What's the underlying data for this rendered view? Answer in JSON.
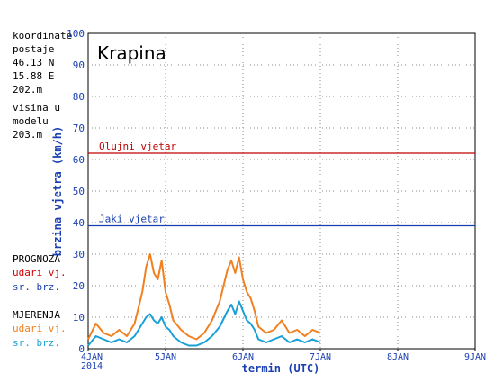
{
  "info": {
    "coords_label": [
      "koordinate",
      "postaje"
    ],
    "lat": "46.13 N",
    "lon": "15.88 E",
    "station_alt": "202.m",
    "model_label": [
      "visina u",
      "modelu"
    ],
    "model_alt": "203.m"
  },
  "legend": {
    "forecast_title": "PROGNOZA",
    "gust": "udari vj.",
    "mean": "sr. brz.",
    "measured_title": "MJERENJA",
    "measured_gust": "udari vj.",
    "measured_mean": "sr. brz."
  },
  "colors": {
    "gust_forecast": "#d00000",
    "mean_forecast": "#1a3fb0",
    "gust_measured": "#f08020",
    "mean_measured": "#1aa0d8",
    "storm_line": "#c00000",
    "strong_line": "#1a3fb0",
    "axis_label": "#1a3fb0"
  },
  "chart_data": {
    "type": "line",
    "title": "Krapina",
    "xlabel": "termin (UTC)",
    "ylabel": "brzina vjetra (km/h)",
    "ylim": [
      0,
      100
    ],
    "yticks": [
      0,
      10,
      20,
      30,
      40,
      50,
      60,
      70,
      80,
      90,
      100
    ],
    "x_range": [
      "4JAN 2014 00",
      "9JAN 2014 00"
    ],
    "xticks": [
      "4JAN",
      "5JAN",
      "6JAN",
      "7JAN",
      "8JAN",
      "9JAN"
    ],
    "xtick_year": "2014",
    "grid": true,
    "thresholds": [
      {
        "label": "Olujni vjetar",
        "value": 62
      },
      {
        "label": "Jaki vjetar",
        "value": 39
      }
    ],
    "series": [
      {
        "name": "udari vj.",
        "x_days": [
          0.0,
          0.1,
          0.2,
          0.3,
          0.4,
          0.5,
          0.6,
          0.7,
          0.75,
          0.8,
          0.85,
          0.9,
          0.95,
          1.0,
          1.05,
          1.1,
          1.2,
          1.3,
          1.4,
          1.5,
          1.6,
          1.7,
          1.8,
          1.85,
          1.9,
          1.95,
          2.0,
          2.05,
          2.1,
          2.15,
          2.2,
          2.3,
          2.4,
          2.5,
          2.6,
          2.7,
          2.8,
          2.9,
          3.0
        ],
        "values": [
          3,
          8,
          5,
          4,
          6,
          4,
          8,
          18,
          26,
          30,
          24,
          22,
          28,
          18,
          14,
          9,
          6,
          4,
          3,
          5,
          9,
          15,
          25,
          28,
          24,
          29,
          22,
          18,
          16,
          12,
          7,
          5,
          6,
          9,
          5,
          6,
          4,
          6,
          5
        ]
      },
      {
        "name": "sr. brz.",
        "x_days": [
          0.0,
          0.1,
          0.2,
          0.3,
          0.4,
          0.5,
          0.6,
          0.7,
          0.75,
          0.8,
          0.85,
          0.9,
          0.95,
          1.0,
          1.05,
          1.1,
          1.2,
          1.3,
          1.4,
          1.5,
          1.6,
          1.7,
          1.8,
          1.85,
          1.9,
          1.95,
          2.0,
          2.05,
          2.1,
          2.15,
          2.2,
          2.3,
          2.4,
          2.5,
          2.6,
          2.7,
          2.8,
          2.9,
          3.0
        ],
        "values": [
          1,
          4,
          3,
          2,
          3,
          2,
          4,
          8,
          10,
          11,
          9,
          8,
          10,
          7,
          6,
          4,
          2,
          1,
          1,
          2,
          4,
          7,
          12,
          14,
          11,
          15,
          12,
          9,
          8,
          6,
          3,
          2,
          3,
          4,
          2,
          3,
          2,
          3,
          2
        ]
      }
    ]
  }
}
